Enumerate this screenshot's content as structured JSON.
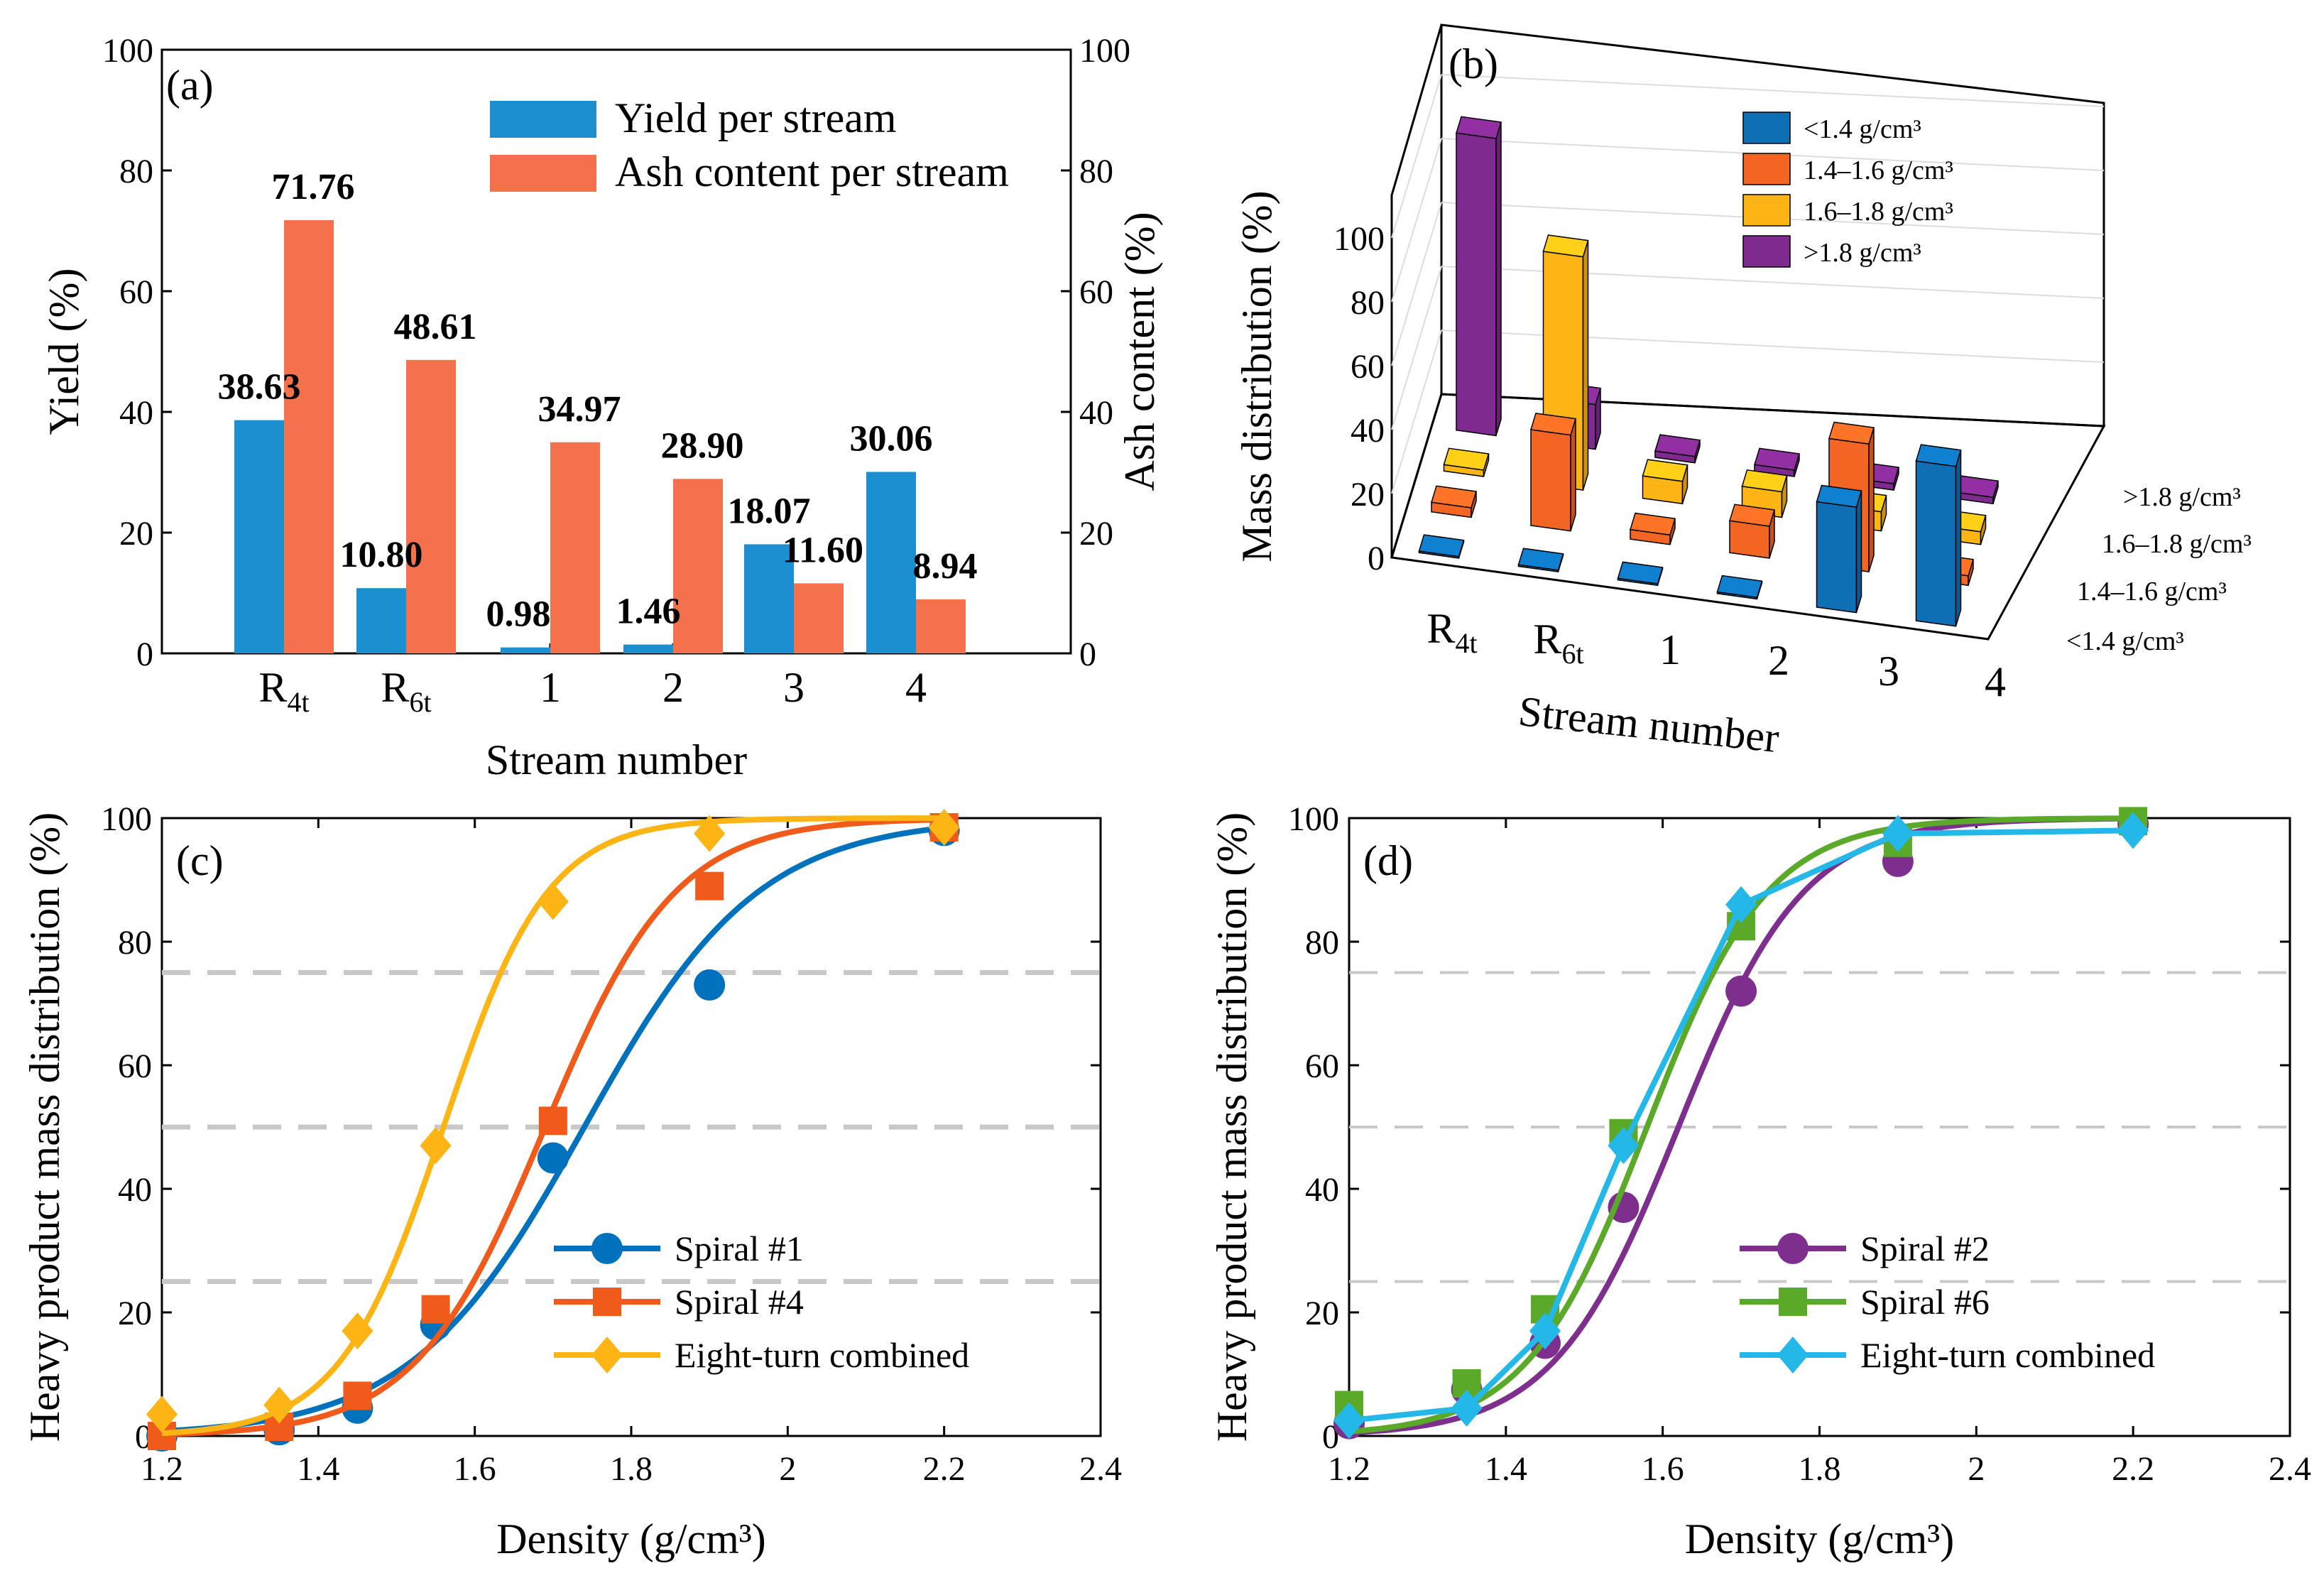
{
  "colors": {
    "blue": "#1B8FCF",
    "orange": "#F4714B",
    "p_blue": "#0E6FB5",
    "p_orange": "#F26522",
    "p_yellow": "#FDB515",
    "p_purple": "#7F2A8E",
    "c_blue": "#0072BD",
    "c_orange": "#F05A1A",
    "c_yellow": "#FDB515",
    "d_purple": "#7E2F8E",
    "d_green": "#5AA928",
    "d_cyan": "#24B8E8",
    "ref_line": "#C8C8C8"
  },
  "chart_data": [
    {
      "panel": "(a)",
      "type": "bar",
      "categories": [
        "R4t",
        "R6t",
        "1",
        "2",
        "3",
        "4"
      ],
      "category_display": [
        {
          "main": "R",
          "sub": "4t"
        },
        {
          "main": "R",
          "sub": "6t"
        },
        {
          "main": "1",
          "sub": ""
        },
        {
          "main": "2",
          "sub": ""
        },
        {
          "main": "3",
          "sub": ""
        },
        {
          "main": "4",
          "sub": ""
        }
      ],
      "series": [
        {
          "name": "Yield per stream",
          "values": [
            38.63,
            10.8,
            0.98,
            1.46,
            18.07,
            30.06
          ],
          "labels": [
            "38.63",
            "10.80",
            "0.98",
            "1.46",
            "18.07",
            "30.06"
          ]
        },
        {
          "name": "Ash content per stream",
          "values": [
            71.76,
            48.61,
            34.97,
            28.9,
            11.6,
            8.94
          ],
          "labels": [
            "71.76",
            "48.61",
            "34.97",
            "28.90",
            "11.60",
            "8.94"
          ]
        }
      ],
      "xlabel": "Stream number",
      "ylabel": "Yield (%)",
      "ylabel_right": "Ash content (%)",
      "ylim": [
        0,
        100
      ],
      "yticks": [
        "0",
        "20",
        "40",
        "60",
        "80",
        "100"
      ],
      "legend": "top-right"
    },
    {
      "panel": "(b)",
      "type": "bar3d",
      "categories": [
        "R4t",
        "R6t",
        "1",
        "2",
        "3",
        "4"
      ],
      "category_display": [
        {
          "main": "R",
          "sub": "4t"
        },
        {
          "main": "R",
          "sub": "6t"
        },
        {
          "main": "1",
          "sub": ""
        },
        {
          "main": "2",
          "sub": ""
        },
        {
          "main": "3",
          "sub": ""
        },
        {
          "main": "4",
          "sub": ""
        }
      ],
      "series": [
        {
          "name": "<1.4 g/cm³",
          "values": [
            0.5,
            0.5,
            0.5,
            0.5,
            33,
            50
          ]
        },
        {
          "name": "1.4–1.6 g/cm³",
          "values": [
            3,
            30,
            3,
            10,
            40,
            3
          ]
        },
        {
          "name": "1.6–1.8 g/cm³",
          "values": [
            2,
            73,
            7,
            8,
            6,
            4
          ]
        },
        {
          "name": ">1.8 g/cm³",
          "values": [
            93,
            14,
            2,
            2,
            2,
            2
          ]
        }
      ],
      "depth_labels": [
        "<1.4 g/cm³",
        "1.4–1.6 g/cm³",
        "1.6–1.8 g/cm³",
        ">1.8 g/cm³"
      ],
      "xlabel": "Stream number",
      "zlabel": "Mass distribution (%)",
      "zlim": [
        0,
        100
      ],
      "zticks": [
        "0",
        "20",
        "40",
        "60",
        "80",
        "100"
      ],
      "legend": "top-right"
    },
    {
      "panel": "(c)",
      "type": "line",
      "xlabel": "Density (g/cm³)",
      "ylabel": "Heavy product mass distribution (%)",
      "xlim": [
        1.2,
        2.4
      ],
      "ylim": [
        0,
        100
      ],
      "xticks": [
        "1.2",
        "1.4",
        "1.6",
        "1.8",
        "2",
        "2.2",
        "2.4"
      ],
      "yticks": [
        "0",
        "20",
        "40",
        "60",
        "80",
        "100"
      ],
      "reference_lines": [
        25,
        50,
        75
      ],
      "series": [
        {
          "name": "Spiral #1",
          "marker": "circle",
          "x": [
            1.2,
            1.35,
            1.45,
            1.55,
            1.7,
            1.9,
            2.2
          ],
          "y": [
            0,
            1,
            4.5,
            18,
            45,
            73,
            98
          ],
          "fit": {
            "d50": 1.74,
            "k": 9.0
          }
        },
        {
          "name": "Spiral #4",
          "marker": "square",
          "x": [
            1.2,
            1.35,
            1.45,
            1.55,
            1.7,
            1.9,
            2.2
          ],
          "y": [
            0,
            1.5,
            6.5,
            20.5,
            51,
            89,
            98.5
          ],
          "fit": {
            "d50": 1.69,
            "k": 12.0
          }
        },
        {
          "name": "Eight-turn combined",
          "marker": "diamond",
          "x": [
            1.2,
            1.35,
            1.45,
            1.55,
            1.7,
            1.9,
            2.2
          ],
          "y": [
            3.5,
            5,
            17,
            47,
            86.5,
            97.5,
            98.5
          ],
          "fit": {
            "d50": 1.56,
            "k": 15.0
          }
        }
      ],
      "legend": "bottom-right"
    },
    {
      "panel": "(d)",
      "type": "line",
      "xlabel": "Density (g/cm³)",
      "ylabel": "Heavy product mass distribution (%)",
      "xlim": [
        1.2,
        2.4
      ],
      "ylim": [
        0,
        100
      ],
      "xticks": [
        "1.2",
        "1.4",
        "1.6",
        "1.8",
        "2",
        "2.2",
        "2.4"
      ],
      "yticks": [
        "0",
        "20",
        "40",
        "60",
        "80",
        "100"
      ],
      "reference_lines": [
        25,
        50,
        75
      ],
      "series": [
        {
          "name": "Spiral #2",
          "marker": "circle",
          "x": [
            1.2,
            1.35,
            1.45,
            1.55,
            1.7,
            1.9,
            2.2
          ],
          "y": [
            2,
            7.5,
            15,
            37,
            72,
            93,
            99
          ],
          "fit": {
            "d50": 1.62,
            "k": 12.5
          }
        },
        {
          "name": "Spiral #6",
          "marker": "square",
          "x": [
            1.2,
            1.35,
            1.45,
            1.55,
            1.7,
            1.9,
            2.2
          ],
          "y": [
            5,
            8.5,
            20.5,
            49,
            82.5,
            96,
            99.5
          ],
          "fit": {
            "d50": 1.58,
            "k": 13.0
          }
        },
        {
          "name": "Eight-turn combined",
          "marker": "diamond",
          "x": [
            1.2,
            1.35,
            1.45,
            1.55,
            1.7,
            1.9,
            2.2
          ],
          "y": [
            2.5,
            4.5,
            17,
            47,
            86,
            97.5,
            98
          ]
        }
      ],
      "legend": "bottom-right"
    }
  ]
}
